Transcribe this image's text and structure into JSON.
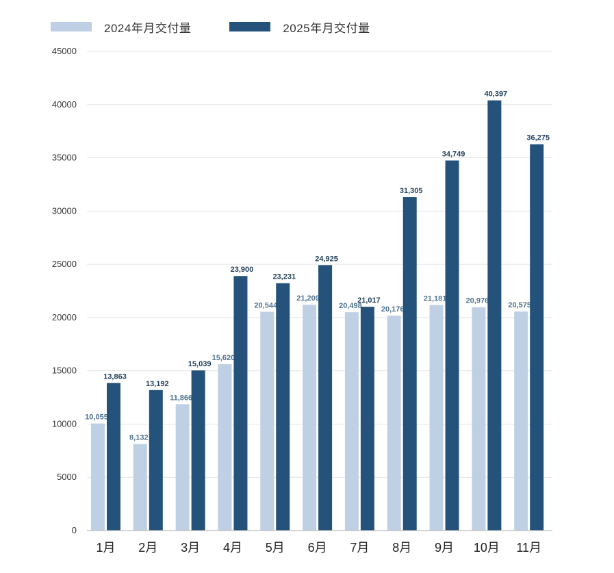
{
  "legend": {
    "series1": {
      "label": "2024年月交付量",
      "color": "#bfd0e4"
    },
    "series2": {
      "label": "2025年月交付量",
      "color": "#24527a"
    }
  },
  "chart_data": {
    "type": "bar",
    "title": "",
    "xlabel": "",
    "ylabel": "",
    "ylim": [
      0,
      45000
    ],
    "yticks": [
      0,
      5000,
      10000,
      15000,
      20000,
      25000,
      30000,
      35000,
      40000,
      45000
    ],
    "grid": true,
    "legend_position": "top-left",
    "categories": [
      "1月",
      "2月",
      "3月",
      "4月",
      "5月",
      "6月",
      "7月",
      "8月",
      "9月",
      "10月",
      "11月"
    ],
    "series": [
      {
        "name": "2024年月交付量",
        "color": "#bfd0e4",
        "values": [
          10055,
          8132,
          11866,
          15620,
          20544,
          21209,
          20498,
          20176,
          21181,
          20976,
          20575
        ],
        "labels": [
          "10,055",
          "8,132",
          "11,866",
          "15,620",
          "20,544",
          "21,209",
          "20,498",
          "20,176",
          "21,181",
          "20,976",
          "20,575"
        ]
      },
      {
        "name": "2025年月交付量",
        "color": "#24527a",
        "values": [
          13863,
          13192,
          15039,
          23900,
          23231,
          24925,
          21017,
          31305,
          34749,
          40397,
          36275
        ],
        "labels": [
          "13,863",
          "13,192",
          "15,039",
          "23,900",
          "23,231",
          "24,925",
          "21,017",
          "31,305",
          "34,749",
          "40,397",
          "36,275"
        ]
      }
    ]
  }
}
